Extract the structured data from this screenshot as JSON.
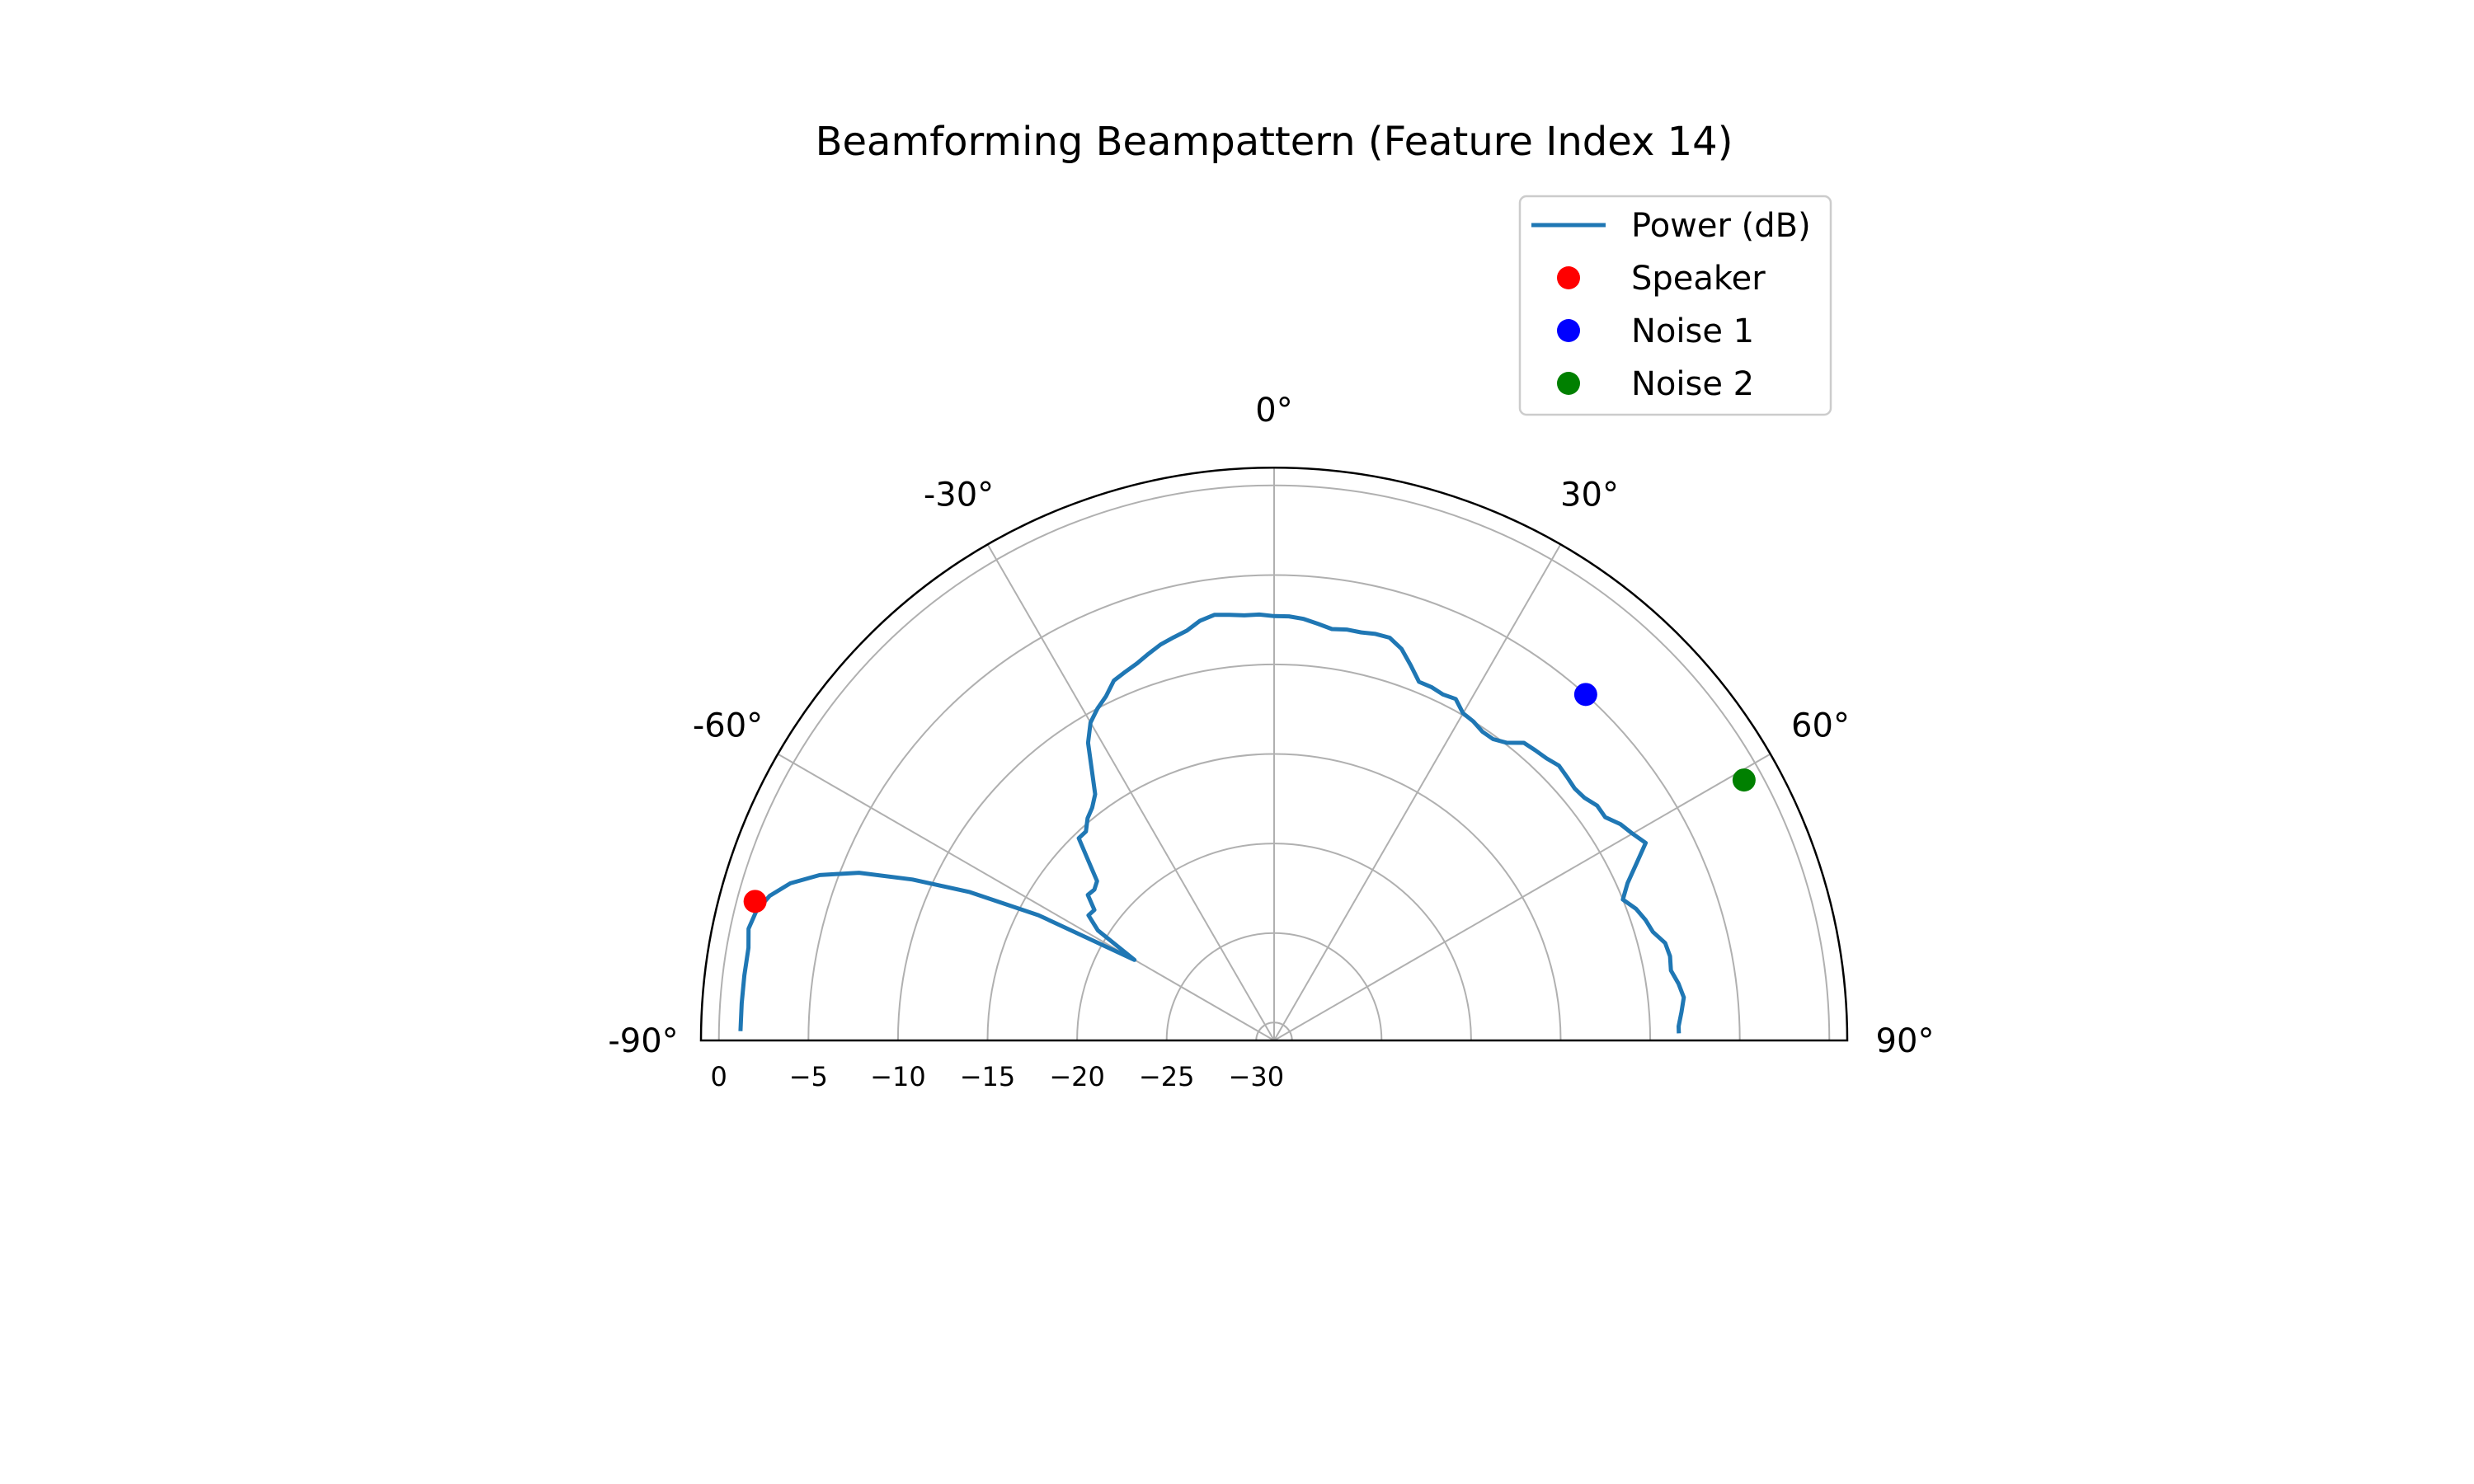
{
  "chart_data": {
    "type": "polar-line",
    "title": "Beamforming Beampattern (Feature Index 14)",
    "theta_range_deg": [
      -90,
      90
    ],
    "theta_ticks_deg": [
      -90,
      -60,
      -30,
      0,
      30,
      60,
      90
    ],
    "theta_tick_labels": [
      "-90°",
      "-60°",
      "-30°",
      "0°",
      "30°",
      "60°",
      "90°"
    ],
    "r_range_db": [
      -31,
      1
    ],
    "r_ticks_db": [
      0,
      -5,
      -10,
      -15,
      -20,
      -25,
      -30
    ],
    "r_tick_labels": [
      "0",
      "−5",
      "−10",
      "−15",
      "−20",
      "−25",
      "−30"
    ],
    "grid": true,
    "legend_position": "top-right",
    "series": [
      {
        "name": "Power (dB)",
        "color": "#1f77b4",
        "theta_deg": [
          -89,
          -86,
          -83,
          -80,
          -78,
          -76,
          -74,
          -72,
          -70,
          -68,
          -66,
          -64,
          -62,
          -60,
          -58,
          -56,
          -54,
          -52,
          -50,
          -48,
          -46,
          -44,
          -42,
          -40,
          -38,
          -36,
          -34,
          -32,
          -30,
          -28,
          -26,
          -24,
          -22,
          -20,
          -18,
          -16,
          -14,
          -12,
          -10,
          -8,
          -6,
          -4,
          -2,
          0,
          2,
          4,
          6,
          8,
          10,
          12,
          14,
          16,
          18,
          20,
          22,
          24,
          26,
          28,
          30,
          32,
          34,
          36,
          38,
          40,
          42,
          44,
          46,
          48,
          50,
          52,
          54,
          56,
          58,
          60,
          62,
          64,
          66,
          68,
          70,
          72,
          74,
          76,
          78,
          80,
          82,
          84,
          86,
          88,
          89
        ],
        "power_db": [
          -1.2,
          -1.2,
          -1.2,
          -1.2,
          -1.0,
          -1.2,
          -1.7,
          -2.6,
          -4.0,
          -6.0,
          -8.9,
          -12.1,
          -16.1,
          -22.0,
          -19.4,
          -18.5,
          -18.6,
          -17.8,
          -17.9,
          -17.7,
          -16.6,
          -15.3,
          -15.3,
          -14.8,
          -14.5,
          -14.0,
          -12.8,
          -11.4,
          -10.5,
          -10.0,
          -9.6,
          -9.0,
          -8.8,
          -8.6,
          -8.3,
          -8.0,
          -7.8,
          -7.6,
          -7.2,
          -7.0,
          -7.1,
          -7.2,
          -7.2,
          -7.3,
          -7.3,
          -7.4,
          -7.6,
          -7.8,
          -7.7,
          -7.7,
          -7.6,
          -7.6,
          -8.0,
          -8.7,
          -9.4,
          -9.4,
          -9.5,
          -9.4,
          -9.9,
          -10.0,
          -10.2,
          -10.2,
          -9.9,
          -9.3,
          -9.2,
          -9.1,
          -8.9,
          -9.0,
          -9.1,
          -9.0,
          -8.7,
          -8.7,
          -8.2,
          -7.9,
          -7.5,
          -8.5,
          -9.4,
          -10.0,
          -9.5,
          -9.2,
          -9.0,
          -8.5,
          -8.4,
          -8.5,
          -8.2,
          -8.0,
          -8.2,
          -8.4,
          -8.4
        ]
      }
    ],
    "markers": [
      {
        "name": "Speaker",
        "color": "#ff0000",
        "theta_deg": -75,
        "power_db": -1.0
      },
      {
        "name": "Noise 1",
        "color": "#0000ff",
        "theta_deg": 42,
        "power_db": -5.0
      },
      {
        "name": "Noise 2",
        "color": "#008000",
        "theta_deg": 61,
        "power_db": -1.0
      }
    ]
  }
}
